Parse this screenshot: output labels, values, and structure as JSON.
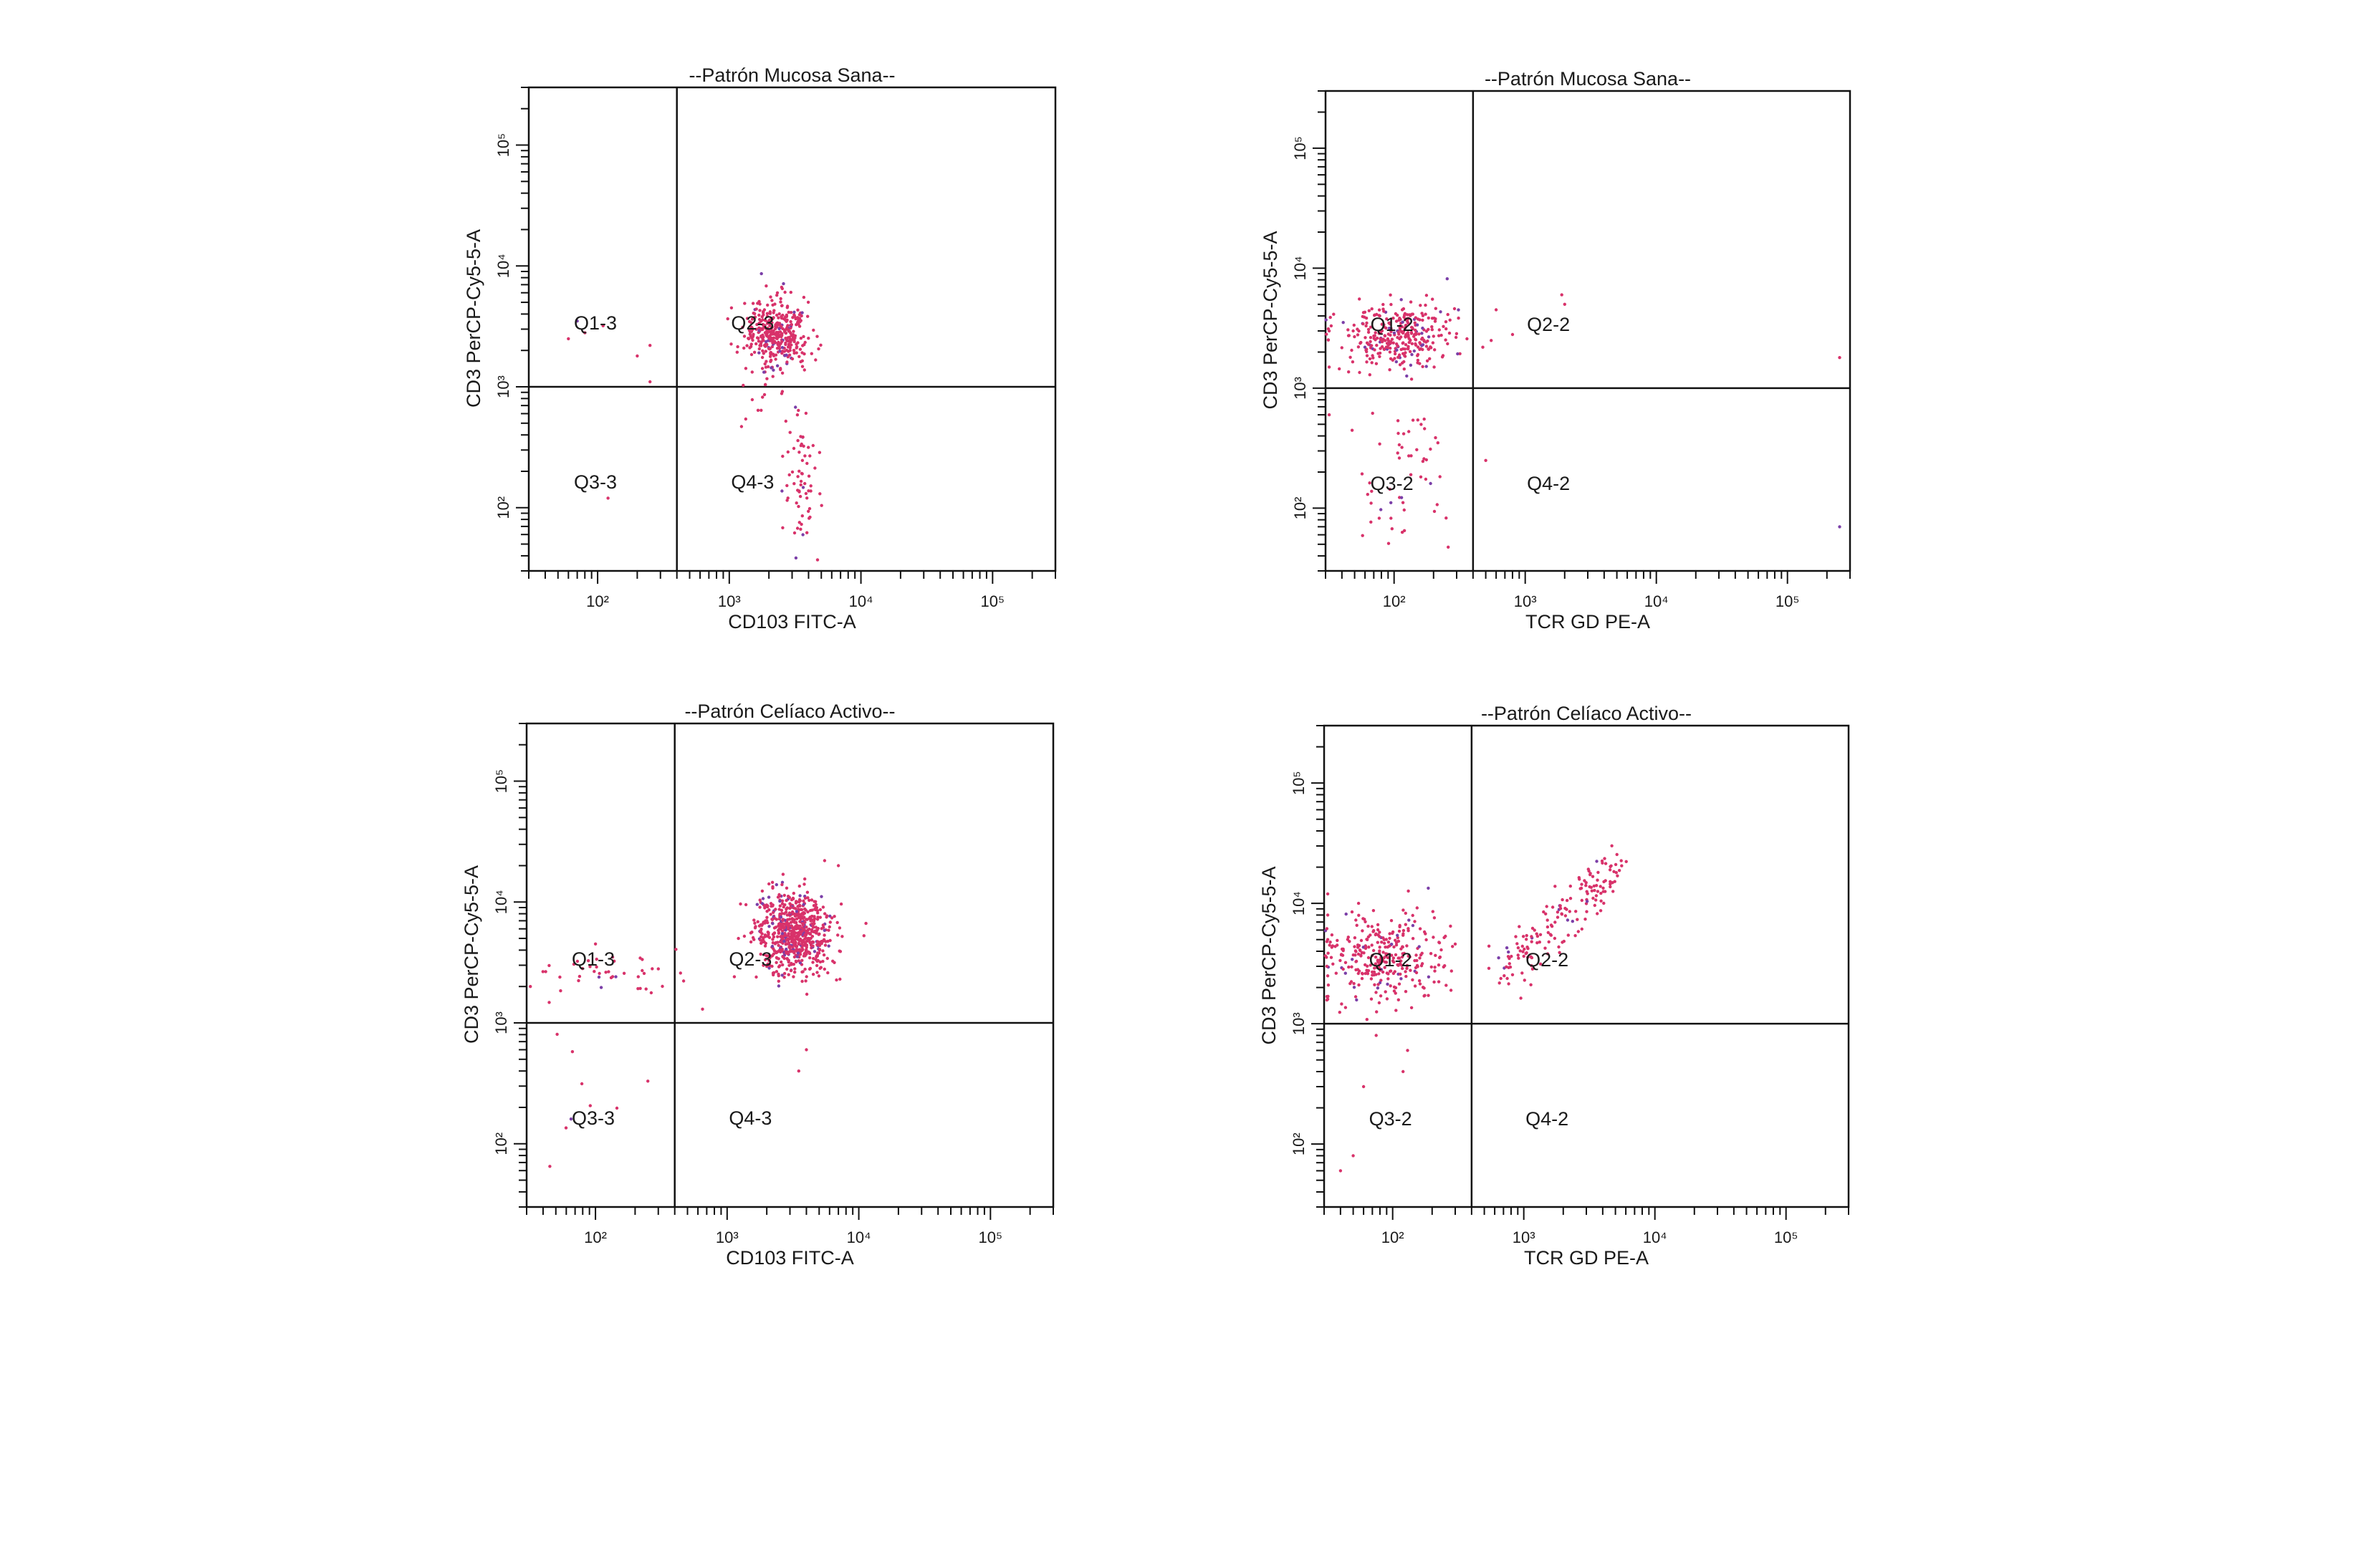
{
  "chart_data": [
    {
      "type": "scatter",
      "title": "--Patrón Mucosa Sana--",
      "xlabel": "CD103 FITC-A",
      "ylabel": "CD3 PerCP-Cy5-5-A",
      "x_scale": "log",
      "y_scale": "log",
      "xlim": [
        30,
        300000
      ],
      "ylim": [
        30,
        300000
      ],
      "x_ticks": [
        {
          "value": 100,
          "label": "10²"
        },
        {
          "value": 1000,
          "label": "10³"
        },
        {
          "value": 10000,
          "label": "10⁴"
        },
        {
          "value": 100000,
          "label": "10⁵"
        }
      ],
      "y_ticks": [
        {
          "value": 100,
          "label": "10²"
        },
        {
          "value": 1000,
          "label": "10³"
        },
        {
          "value": 10000,
          "label": "10⁴"
        },
        {
          "value": 100000,
          "label": "10⁵"
        }
      ],
      "gate": {
        "x": 400,
        "y": 1000
      },
      "quadrants": {
        "upper_left": "Q1-3",
        "upper_right": "Q2-3",
        "lower_left": "Q3-3",
        "lower_right": "Q4-3"
      },
      "point_color": "#d8326a",
      "clusters": [
        {
          "cx": 2300,
          "cy": 2800,
          "sx": 0.12,
          "sy": 0.14,
          "n": 380
        },
        {
          "cx": 3500,
          "cy": 160,
          "sx": 0.08,
          "sy": 0.3,
          "n": 70
        },
        {
          "cx": 2000,
          "cy": 900,
          "sx": 0.1,
          "sy": 0.15,
          "n": 15
        }
      ],
      "points": [
        [
          70,
          3500
        ],
        [
          110,
          3200
        ],
        [
          60,
          2500
        ],
        [
          200,
          1800
        ],
        [
          250,
          1100
        ],
        [
          120,
          120
        ],
        [
          250,
          2200
        ],
        [
          80,
          2800
        ]
      ]
    },
    {
      "type": "scatter",
      "title": "--Patrón Mucosa Sana--",
      "xlabel": "TCR GD PE-A",
      "ylabel": "CD3 PerCP-Cy5-5-A",
      "x_scale": "log",
      "y_scale": "log",
      "xlim": [
        30,
        300000
      ],
      "ylim": [
        30,
        300000
      ],
      "x_ticks": [
        {
          "value": 100,
          "label": "10²"
        },
        {
          "value": 1000,
          "label": "10³"
        },
        {
          "value": 10000,
          "label": "10⁴"
        },
        {
          "value": 100000,
          "label": "10⁵"
        }
      ],
      "y_ticks": [
        {
          "value": 100,
          "label": "10²"
        },
        {
          "value": 1000,
          "label": "10³"
        },
        {
          "value": 10000,
          "label": "10⁴"
        },
        {
          "value": 100000,
          "label": "10⁵"
        }
      ],
      "gate": {
        "x": 400,
        "y": 1000
      },
      "quadrants": {
        "upper_left": "Q1-2",
        "upper_right": "Q2-2",
        "lower_left": "Q3-2",
        "lower_right": "Q4-2"
      },
      "point_color": "#d8326a",
      "clusters": [
        {
          "cx": 110,
          "cy": 2700,
          "sx": 0.22,
          "sy": 0.14,
          "n": 330
        },
        {
          "cx": 120,
          "cy": 180,
          "sx": 0.2,
          "sy": 0.35,
          "n": 55
        }
      ],
      "points": [
        [
          2000,
          5000
        ],
        [
          1900,
          6000
        ],
        [
          600,
          4500
        ],
        [
          550,
          2500
        ],
        [
          800,
          2800
        ],
        [
          32,
          1500
        ],
        [
          32,
          3000
        ],
        [
          32,
          600
        ],
        [
          250000,
          1800
        ],
        [
          250000,
          70
        ],
        [
          500,
          250
        ]
      ]
    },
    {
      "type": "scatter",
      "title": "--Patrón Celíaco Activo--",
      "xlabel": "CD103 FITC-A",
      "ylabel": "CD3 PerCP-Cy5-5-A",
      "x_scale": "log",
      "y_scale": "log",
      "xlim": [
        30,
        300000
      ],
      "ylim": [
        30,
        300000
      ],
      "x_ticks": [
        {
          "value": 100,
          "label": "10²"
        },
        {
          "value": 1000,
          "label": "10³"
        },
        {
          "value": 10000,
          "label": "10⁴"
        },
        {
          "value": 100000,
          "label": "10⁵"
        }
      ],
      "y_ticks": [
        {
          "value": 100,
          "label": "10²"
        },
        {
          "value": 1000,
          "label": "10³"
        },
        {
          "value": 10000,
          "label": "10⁴"
        },
        {
          "value": 100000,
          "label": "10⁵"
        }
      ],
      "gate": {
        "x": 400,
        "y": 1000
      },
      "quadrants": {
        "upper_left": "Q1-3",
        "upper_right": "Q2-3",
        "lower_left": "Q3-3",
        "lower_right": "Q4-3"
      },
      "point_color": "#d8326a",
      "clusters": [
        {
          "cx": 3200,
          "cy": 5500,
          "sx": 0.14,
          "sy": 0.17,
          "n": 700
        },
        {
          "cx": 150,
          "cy": 2600,
          "sx": 0.28,
          "sy": 0.1,
          "n": 40
        },
        {
          "cx": 60,
          "cy": 300,
          "sx": 0.15,
          "sy": 0.35,
          "n": 8
        }
      ],
      "points": [
        [
          7000,
          20000
        ],
        [
          5500,
          22000
        ],
        [
          4000,
          600
        ],
        [
          3500,
          400
        ],
        [
          650,
          1300
        ],
        [
          250,
          330
        ],
        [
          45,
          65
        ],
        [
          32,
          2000
        ],
        [
          100,
          4500
        ],
        [
          300,
          2800
        ]
      ]
    },
    {
      "type": "scatter",
      "title": "--Patrón Celíaco Activo--",
      "xlabel": "TCR GD PE-A",
      "ylabel": "CD3 PerCP-Cy5-5-A",
      "x_scale": "log",
      "y_scale": "log",
      "xlim": [
        30,
        300000
      ],
      "ylim": [
        30,
        300000
      ],
      "x_ticks": [
        {
          "value": 100,
          "label": "10²"
        },
        {
          "value": 1000,
          "label": "10³"
        },
        {
          "value": 10000,
          "label": "10⁴"
        },
        {
          "value": 100000,
          "label": "10⁵"
        }
      ],
      "y_ticks": [
        {
          "value": 100,
          "label": "10²"
        },
        {
          "value": 1000,
          "label": "10³"
        },
        {
          "value": 10000,
          "label": "10⁴"
        },
        {
          "value": 100000,
          "label": "10⁵"
        }
      ],
      "gate": {
        "x": 400,
        "y": 1000
      },
      "quadrants": {
        "upper_left": "Q1-2",
        "upper_right": "Q2-2",
        "lower_left": "Q3-2",
        "lower_right": "Q4-2"
      },
      "point_color": "#d8326a",
      "clusters": [
        {
          "cx": 90,
          "cy": 3500,
          "sx": 0.24,
          "sy": 0.2,
          "n": 320
        }
      ],
      "diagonal": {
        "x_from": 500,
        "x_to": 5200,
        "y_from": 1800,
        "y_to": 21000,
        "spread": 0.08,
        "n": 170
      },
      "points": [
        [
          32,
          5000
        ],
        [
          32,
          8000
        ],
        [
          32,
          12000
        ],
        [
          32,
          2500
        ],
        [
          32,
          1600
        ],
        [
          60,
          300
        ],
        [
          50,
          80
        ],
        [
          40,
          60
        ],
        [
          130,
          600
        ],
        [
          120,
          400
        ]
      ]
    }
  ]
}
